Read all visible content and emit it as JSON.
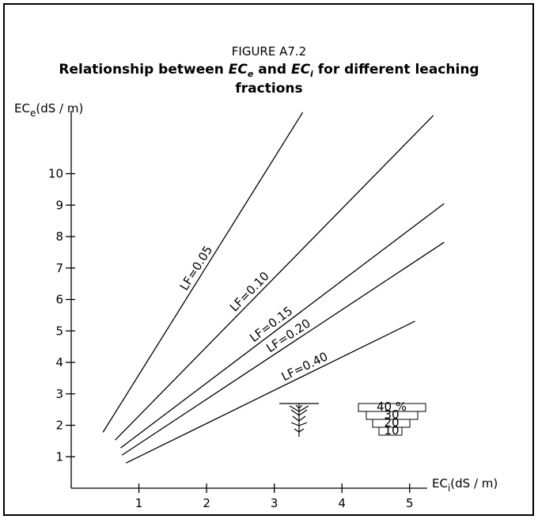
{
  "chart_data": {
    "type": "line",
    "title": "FIGURE A7.2",
    "subtitle": {
      "line1": [
        "Relationship between ",
        "EC",
        "e",
        " and ",
        "EC",
        "i",
        " for different leaching"
      ],
      "line2": "fractions"
    },
    "y_label": {
      "main": "EC",
      "sub": "e",
      "unit": "(dS / m)"
    },
    "x_label": {
      "main": "EC",
      "sub": "i",
      "unit": "(dS / m)"
    },
    "xlim": [
      0,
      5.26
    ],
    "ylim": [
      0,
      12
    ],
    "xticks": [
      1,
      2,
      3,
      4,
      5
    ],
    "yticks": [
      1,
      2,
      3,
      4,
      5,
      6,
      7,
      8,
      9,
      10
    ],
    "series": [
      {
        "name": "LF=0.05",
        "color": "#000000",
        "x": [
          0.47,
          3.42
        ],
        "values": [
          1.78,
          11.95
        ]
      },
      {
        "name": "LF=0.10",
        "color": "#000000",
        "x": [
          0.65,
          5.35
        ],
        "values": [
          1.53,
          11.85
        ]
      },
      {
        "name": "LF=0.15",
        "color": "#000000",
        "x": [
          0.73,
          5.51
        ],
        "values": [
          1.28,
          9.05
        ]
      },
      {
        "name": "LF=0.20",
        "color": "#000000",
        "x": [
          0.75,
          5.51
        ],
        "values": [
          1.05,
          7.82
        ]
      },
      {
        "name": "LF=0.40",
        "color": "#000000",
        "x": [
          0.81,
          5.08
        ],
        "values": [
          0.8,
          5.31
        ]
      }
    ],
    "icon_labels": [
      "40 %",
      "30",
      "20",
      "10"
    ]
  }
}
